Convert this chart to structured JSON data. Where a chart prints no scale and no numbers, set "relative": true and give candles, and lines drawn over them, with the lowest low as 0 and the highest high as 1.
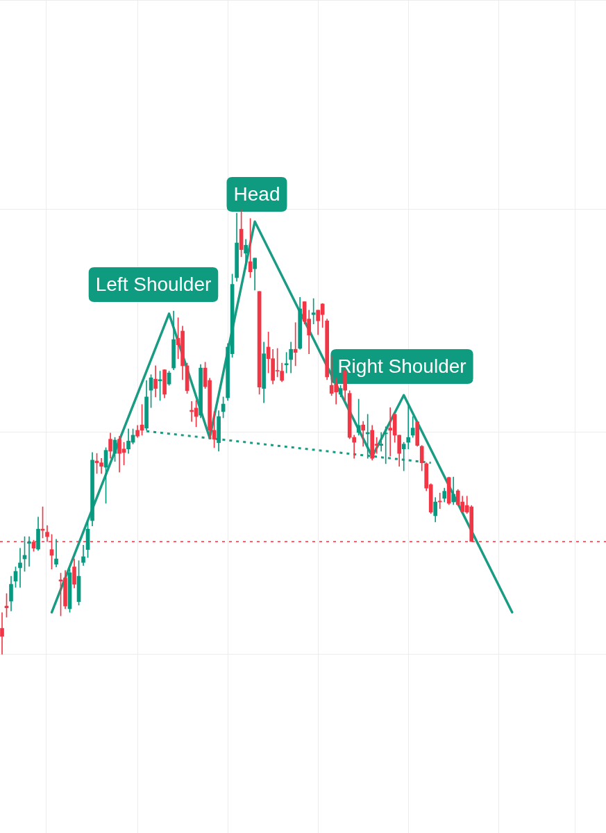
{
  "chart_data": {
    "type": "candlestick",
    "relative": true,
    "grid": true,
    "marker": "none",
    "categories": [
      null,
      null,
      null,
      null,
      null,
      null,
      null,
      null,
      null,
      null,
      null,
      null,
      null,
      null,
      null,
      null,
      null,
      null,
      null,
      null,
      null,
      null,
      null,
      null,
      null,
      null,
      null,
      null,
      null,
      null,
      null,
      null,
      null,
      null,
      null,
      null,
      null,
      null,
      null,
      null,
      null,
      null,
      null,
      null,
      null,
      null,
      null,
      null,
      null,
      null,
      null,
      null,
      null,
      null,
      null,
      null,
      null,
      null,
      null,
      null,
      null,
      null,
      null,
      null,
      null,
      null,
      null,
      null,
      null,
      null,
      null,
      null,
      null,
      null,
      null,
      null,
      null,
      null,
      null,
      null,
      null,
      null,
      null,
      null,
      null,
      null,
      null,
      null,
      null,
      null,
      null,
      null,
      null,
      null,
      null,
      null,
      null,
      null,
      null,
      null,
      null,
      null,
      null,
      null,
      null,
      null,
      null,
      null,
      null,
      null,
      null,
      null,
      null,
      null
    ],
    "ohlc": [
      [
        0.059,
        0.094,
        0,
        0.041
      ],
      [
        0.109,
        0.137,
        0.084,
        0.105
      ],
      [
        0.12,
        0.176,
        0.098,
        0.158
      ],
      [
        0.165,
        0.197,
        0.151,
        0.187
      ],
      [
        0.195,
        0.239,
        0.151,
        0.206
      ],
      [
        0.215,
        0.265,
        0.187,
        0.223
      ],
      [
        0.25,
        0.265,
        0.198,
        0.253
      ],
      [
        0.253,
        0.257,
        0.232,
        0.239
      ],
      [
        0.237,
        0.309,
        0.234,
        0.282
      ],
      [
        0.282,
        0.332,
        0.262,
        0.279
      ],
      [
        0.275,
        0.29,
        0.254,
        0.265
      ],
      [
        0.236,
        0.27,
        0.192,
        0.223
      ],
      [
        0.203,
        0.259,
        0.197,
        0.215
      ],
      [
        0.168,
        0.183,
        0.087,
        0.165
      ],
      [
        0.172,
        0.189,
        0.103,
        0.109
      ],
      [
        0.103,
        0.192,
        0.095,
        0.184
      ],
      [
        0.197,
        0.215,
        0.15,
        0.158
      ],
      [
        0.119,
        0.211,
        0.111,
        0.176
      ],
      [
        0.207,
        0.246,
        0.2,
        0.22
      ],
      [
        0.236,
        0.298,
        0.218,
        0.282
      ],
      [
        0.301,
        0.454,
        0.289,
        0.437
      ],
      [
        0.435,
        0.452,
        0.407,
        0.431
      ],
      [
        0.431,
        0.441,
        0.407,
        0.423
      ],
      [
        0.421,
        0.465,
        0.34,
        0.459
      ],
      [
        0.484,
        0.498,
        0.441,
        0.457
      ],
      [
        0.452,
        0.488,
        0.434,
        0.482
      ],
      [
        0.484,
        0.491,
        0.41,
        0.452
      ],
      [
        0.462,
        0.477,
        0.426,
        0.454
      ],
      [
        0.462,
        0.507,
        0.452,
        0.48
      ],
      [
        0.477,
        0.507,
        0.473,
        0.493
      ],
      [
        0.504,
        0.515,
        0.488,
        0.491
      ],
      [
        0.516,
        0.562,
        0.493,
        0.504
      ],
      [
        0.509,
        0.616,
        0.504,
        0.579
      ],
      [
        0.594,
        0.629,
        0.555,
        0.622
      ],
      [
        0.619,
        0.649,
        0.579,
        0.598
      ],
      [
        0.615,
        0.637,
        0.571,
        0.618
      ],
      [
        0.64,
        0.64,
        0.577,
        0.585
      ],
      [
        0.608,
        0.637,
        0.605,
        0.633
      ],
      [
        0.644,
        0.772,
        0.64,
        0.708
      ],
      [
        0.711,
        0.757,
        0.665,
        0.696
      ],
      [
        0.727,
        0.738,
        0.618,
        0.649
      ],
      [
        0.649,
        0.655,
        0.587,
        0.593
      ],
      [
        0.549,
        0.569,
        0.524,
        0.546
      ],
      [
        0.554,
        0.571,
        0.512,
        0.535
      ],
      [
        0.538,
        0.652,
        0.532,
        0.644
      ],
      [
        0.644,
        0.657,
        0.598,
        0.602
      ],
      [
        0.616,
        0.621,
        0.485,
        0.504
      ],
      [
        0.504,
        0.546,
        0.465,
        0.484
      ],
      [
        0.476,
        0.548,
        0.457,
        0.535
      ],
      [
        0.546,
        0.579,
        0.532,
        0.563
      ],
      [
        0.577,
        0.699,
        0.571,
        0.691
      ],
      [
        0.676,
        0.855,
        0.668,
        0.832
      ],
      [
        0.847,
        0.992,
        0.839,
        0.925
      ],
      [
        0.956,
        1,
        0.894,
        0.91
      ],
      [
        0.902,
        0.933,
        0.867,
        0.92
      ],
      [
        0.883,
        0.98,
        0.847,
        0.86
      ],
      [
        0.867,
        0.891,
        0.819,
        0.891
      ],
      [
        0.816,
        0.816,
        0.585,
        0.601
      ],
      [
        0.598,
        0.702,
        0.566,
        0.676
      ],
      [
        0.691,
        0.725,
        0.633,
        0.665
      ],
      [
        0.665,
        0.686,
        0.608,
        0.616
      ],
      [
        0.638,
        0.688,
        0.624,
        0.637
      ],
      [
        0.637,
        0.655,
        0.613,
        0.616
      ],
      [
        0.651,
        0.679,
        0.633,
        0.654
      ],
      [
        0.663,
        0.702,
        0.633,
        0.686
      ],
      [
        0.686,
        0.746,
        0.649,
        0.679
      ],
      [
        0.688,
        0.803,
        0.686,
        0.777
      ],
      [
        0.793,
        0.793,
        0.743,
        0.749
      ],
      [
        0.754,
        0.774,
        0.676,
        0.718
      ],
      [
        0.764,
        0.8,
        0.743,
        0.768
      ],
      [
        0.774,
        0.774,
        0.719,
        0.75
      ],
      [
        0.788,
        0.789,
        0.735,
        0.764
      ],
      [
        0.75,
        0.754,
        0.618,
        0.624
      ],
      [
        0.605,
        0.671,
        0.582,
        0.587
      ],
      [
        0.608,
        0.621,
        0.563,
        0.59
      ],
      [
        0.585,
        0.605,
        0.579,
        0.598
      ],
      [
        0.637,
        0.64,
        0.571,
        0.594
      ],
      [
        0.587,
        0.593,
        0.485,
        0.488
      ],
      [
        0.488,
        0.493,
        0.441,
        0.477
      ],
      [
        0.499,
        0.574,
        0.493,
        0.515
      ],
      [
        0.516,
        0.524,
        0.468,
        0.504
      ],
      [
        0.496,
        0.54,
        0.441,
        0.499
      ],
      [
        0.504,
        0.515,
        0.437,
        0.441
      ],
      [
        0.473,
        0.488,
        0.452,
        0.47
      ],
      [
        0.47,
        0.499,
        0.457,
        0.473
      ],
      [
        0.496,
        0.512,
        0.429,
        0.498
      ],
      [
        0.509,
        0.555,
        0.446,
        0.504
      ],
      [
        0.54,
        0.54,
        0.477,
        0.493
      ],
      [
        0.493,
        0.493,
        0.423,
        0.452
      ],
      [
        0.462,
        0.477,
        0.413,
        0.473
      ],
      [
        0.477,
        0.563,
        0.462,
        0.488
      ],
      [
        0.493,
        0.535,
        0.488,
        0.509
      ],
      [
        0.523,
        0.523,
        0.468,
        0.47
      ],
      [
        0.468,
        0.47,
        0.413,
        0.431
      ],
      [
        0.429,
        0.431,
        0.368,
        0.374
      ],
      [
        0.382,
        0.384,
        0.317,
        0.32
      ],
      [
        0.312,
        0.353,
        0.298,
        0.343
      ],
      [
        0.345,
        0.363,
        0.328,
        0.343
      ],
      [
        0.351,
        0.374,
        0.343,
        0.367
      ],
      [
        0.398,
        0.399,
        0.337,
        0.34
      ],
      [
        0.343,
        0.399,
        0.337,
        0.36
      ],
      [
        0.368,
        0.371,
        0.335,
        0.337
      ],
      [
        0.343,
        0.356,
        0.32,
        0.321
      ],
      [
        0.335,
        0.356,
        0.317,
        0.32
      ],
      [
        0.332,
        0.335,
        0.254,
        0.254
      ],
      null,
      null,
      null,
      null,
      null,
      null,
      null,
      null,
      null
    ],
    "colors": [
      "#f23645",
      "#f23645",
      "#089981",
      "#089981",
      "#089981",
      "#089981",
      "#089981",
      "#f23645",
      "#089981",
      "#f23645",
      "#f23645",
      "#f23645",
      "#089981",
      "#f23645",
      "#f23645",
      "#089981",
      "#f23645",
      "#089981",
      "#089981",
      "#089981",
      "#089981",
      "#f23645",
      "#f23645",
      "#089981",
      "#f23645",
      "#089981",
      "#f23645",
      "#f23645",
      "#089981",
      "#089981",
      "#f23645",
      "#f23645",
      "#089981",
      "#089981",
      "#f23645",
      "#089981",
      "#f23645",
      "#089981",
      "#089981",
      "#f23645",
      "#f23645",
      "#f23645",
      "#f23645",
      "#f23645",
      "#089981",
      "#f23645",
      "#f23645",
      "#f23645",
      "#089981",
      "#089981",
      "#089981",
      "#089981",
      "#089981",
      "#f23645",
      "#089981",
      "#f23645",
      "#089981",
      "#f23645",
      "#089981",
      "#f23645",
      "#f23645",
      "#f23645",
      "#f23645",
      "#089981",
      "#089981",
      "#f23645",
      "#089981",
      "#f23645",
      "#f23645",
      "#089981",
      "#f23645",
      "#f23645",
      "#f23645",
      "#f23645",
      "#f23645",
      "#089981",
      "#f23645",
      "#f23645",
      "#f23645",
      "#089981",
      "#f23645",
      "#089981",
      "#f23645",
      "#f23645",
      "#089981",
      "#089981",
      "#f23645",
      "#f23645",
      "#f23645",
      "#089981",
      "#089981",
      "#089981",
      "#f23645",
      "#f23645",
      "#f23645",
      "#f23645",
      "#089981",
      "#f23645",
      "#089981",
      "#f23645",
      "#089981",
      "#f23645",
      "#f23645",
      "#f23645",
      "#f23645",
      null,
      null,
      null,
      null,
      null,
      null,
      null,
      null,
      null
    ],
    "series": [
      {
        "type": "line",
        "color": "#1a9b83",
        "line_style": "solid",
        "values": [
          null,
          null,
          null,
          null,
          null,
          null,
          null,
          null,
          null,
          null,
          null,
          0.095,
          null,
          null,
          null,
          null,
          null,
          null,
          null,
          null,
          null,
          null,
          null,
          null,
          null,
          null,
          null,
          null,
          null,
          null,
          null,
          null,
          null,
          null,
          null,
          null,
          null,
          0.766,
          null,
          null,
          null,
          null,
          null,
          null,
          null,
          null,
          0.487,
          null,
          null,
          null,
          null,
          null,
          null,
          null,
          null,
          null,
          0.973,
          null,
          null,
          null,
          null,
          null,
          null,
          null,
          null,
          null,
          null,
          null,
          null,
          null,
          null,
          null,
          null,
          null,
          null,
          null,
          null,
          null,
          null,
          null,
          null,
          null,
          0.445,
          null,
          null,
          null,
          null,
          null,
          null,
          0.583,
          null,
          null,
          null,
          null,
          null,
          null,
          null,
          null,
          null,
          null,
          null,
          null,
          null,
          null,
          null,
          null,
          null,
          null,
          null,
          null,
          null,
          null,
          null,
          0.095
        ]
      },
      {
        "type": "line",
        "color": "#1a9b83",
        "line_style": "dotted",
        "values": [
          null,
          null,
          null,
          null,
          null,
          null,
          null,
          null,
          null,
          null,
          null,
          null,
          null,
          null,
          null,
          null,
          null,
          null,
          null,
          null,
          null,
          null,
          null,
          null,
          null,
          null,
          null,
          null,
          null,
          null,
          null,
          null,
          0.502,
          null,
          null,
          null,
          null,
          null,
          null,
          null,
          null,
          null,
          null,
          null,
          null,
          null,
          null,
          null,
          null,
          null,
          null,
          null,
          null,
          null,
          null,
          null,
          null,
          null,
          null,
          null,
          null,
          null,
          null,
          null,
          null,
          null,
          null,
          null,
          null,
          null,
          null,
          null,
          null,
          null,
          null,
          null,
          null,
          null,
          null,
          null,
          null,
          null,
          null,
          null,
          null,
          null,
          null,
          null,
          null,
          null,
          null,
          null,
          null,
          null,
          null,
          0.431,
          null,
          null,
          null,
          null,
          null,
          null,
          null,
          null,
          null,
          null,
          null,
          null,
          null,
          null,
          null,
          null,
          null,
          null
        ]
      }
    ],
    "ref_lines": [
      {
        "axis": "y",
        "value": 0.254,
        "color": "#f23645",
        "line_style": "dotted"
      }
    ],
    "annotations": [
      "Left Shoulder",
      "Head",
      "Right Shoulder"
    ]
  }
}
